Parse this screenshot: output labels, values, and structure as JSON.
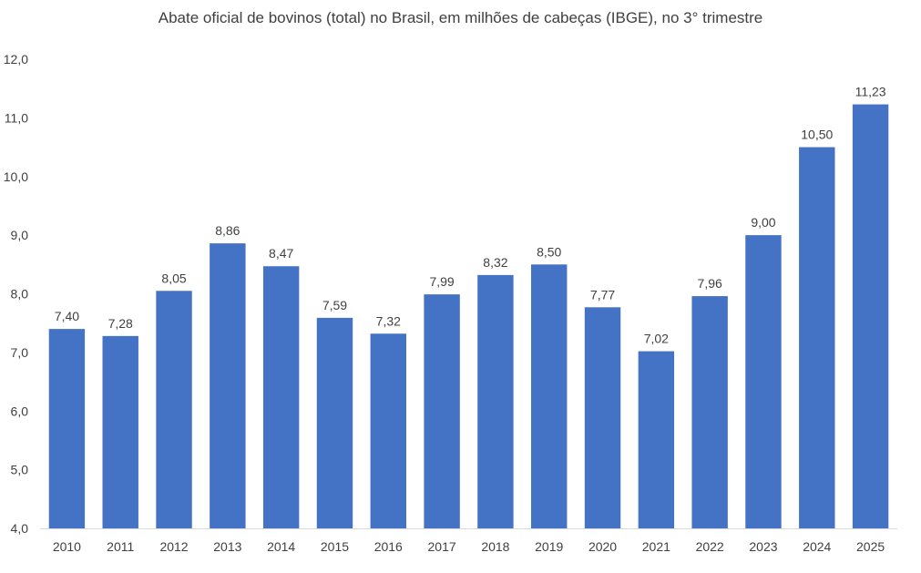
{
  "chart_data": {
    "type": "bar",
    "title": "Abate oficial de bovinos (total) no Brasil, em milhões de cabeças (IBGE), no 3° trimestre",
    "categories": [
      "2010",
      "2011",
      "2012",
      "2013",
      "2014",
      "2015",
      "2016",
      "2017",
      "2018",
      "2019",
      "2020",
      "2021",
      "2022",
      "2023",
      "2024",
      "2025"
    ],
    "values": [
      7.4,
      7.28,
      8.05,
      8.86,
      8.47,
      7.59,
      7.32,
      7.99,
      8.32,
      8.5,
      7.77,
      7.02,
      7.96,
      9.0,
      10.5,
      11.23
    ],
    "value_labels": [
      "7,40",
      "7,28",
      "8,05",
      "8,86",
      "8,47",
      "7,59",
      "7,32",
      "7,99",
      "8,32",
      "8,50",
      "7,77",
      "7,02",
      "7,96",
      "9,00",
      "10,50",
      "11,23"
    ],
    "y_ticks": [
      4,
      5,
      6,
      7,
      8,
      9,
      10,
      11,
      12
    ],
    "y_tick_labels": [
      "4,0",
      "5,0",
      "6,0",
      "7,0",
      "8,0",
      "9,0",
      "10,0",
      "11,0",
      "12,0"
    ],
    "ylim": [
      4,
      12
    ],
    "grid": false,
    "legend": "none",
    "bar_color": "#4472C4",
    "axis_color": "#d9d9d9"
  }
}
